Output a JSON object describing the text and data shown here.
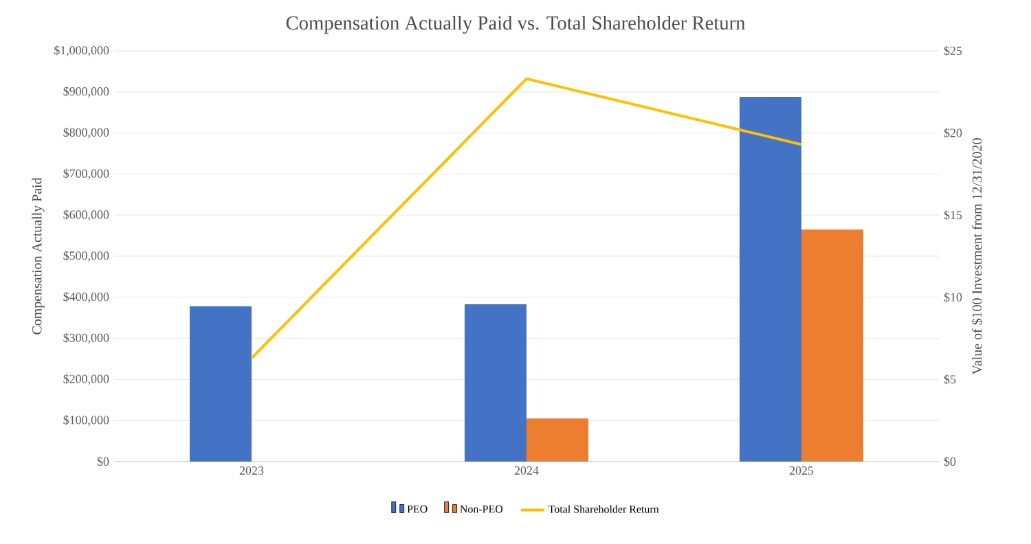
{
  "chart_data": {
    "type": "bar",
    "title": "Compensation Actually Paid vs. Total Shareholder Return",
    "ylabel": "Compensation Actually Paid",
    "y2label": "Value of $100 Investment from 12/31/2020",
    "categories": [
      "2023",
      "2024",
      "2025"
    ],
    "series": [
      {
        "name": "PEO",
        "color": "#4472c4",
        "values": [
          378000,
          383000,
          888000
        ]
      },
      {
        "name": "Non-PEO",
        "color": "#ed7d31",
        "values": [
          null,
          105000,
          565000
        ]
      },
      {
        "name": "Total Shareholder Return",
        "type": "line",
        "axis": "y2",
        "color": "#ffc000",
        "values": [
          6.3,
          23.3,
          19.3
        ]
      }
    ],
    "ylim": [
      0,
      1000000
    ],
    "yticks": [
      {
        "value": 0,
        "label": "$0"
      },
      {
        "value": 100000,
        "label": "$100,000"
      },
      {
        "value": 200000,
        "label": "$200,000"
      },
      {
        "value": 300000,
        "label": "$300,000"
      },
      {
        "value": 400000,
        "label": "$400,000"
      },
      {
        "value": 500000,
        "label": "$500,000"
      },
      {
        "value": 600000,
        "label": "$600,000"
      },
      {
        "value": 700000,
        "label": "$700,000"
      },
      {
        "value": 800000,
        "label": "$800,000"
      },
      {
        "value": 900000,
        "label": "$900,000"
      },
      {
        "value": 1000000,
        "label": "$1,000,000"
      }
    ],
    "y2lim": [
      0,
      25
    ],
    "y2ticks": [
      {
        "value": 0,
        "label": "$0"
      },
      {
        "value": 5,
        "label": "$5"
      },
      {
        "value": 10,
        "label": "$10"
      },
      {
        "value": 15,
        "label": "$15"
      },
      {
        "value": 20,
        "label": "$20"
      },
      {
        "value": 25,
        "label": "$25"
      }
    ],
    "grid": "y",
    "legend": "bottom"
  }
}
